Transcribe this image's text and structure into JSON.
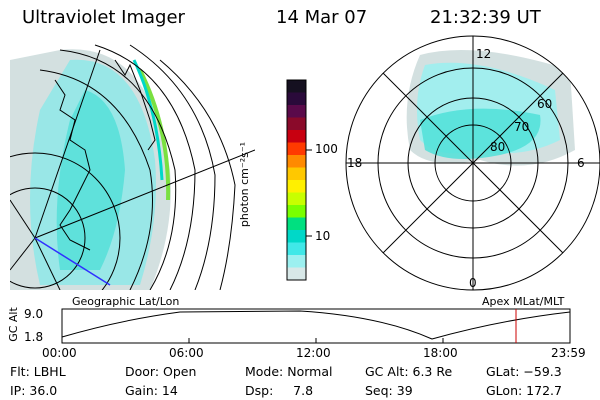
{
  "header": {
    "instrument": "Ultraviolet Imager",
    "date": "14 Mar 07",
    "time": "21:32:39 UT"
  },
  "colorbar": {
    "unit_label": "photon cm⁻²s⁻¹",
    "tick_labels": [
      "100",
      "10"
    ],
    "colors": [
      "#151020",
      "#2a0a3a",
      "#5a0a4a",
      "#8a0a2a",
      "#c80010",
      "#ff3a00",
      "#ff8a00",
      "#ffc800",
      "#fff000",
      "#c8ff00",
      "#7aff00",
      "#00e080",
      "#00d8c8",
      "#40e8e8",
      "#9cf0f0",
      "#d8e8e8"
    ]
  },
  "geographic_panel": {
    "label": "Geographic Lat/Lon"
  },
  "polar_panel": {
    "label": "Apex MLat/MLT",
    "mlt_labels": {
      "top": "12",
      "left": "18",
      "right": "6",
      "bottom": "0"
    },
    "lat_labels": [
      "60",
      "70",
      "80"
    ]
  },
  "altitude_plot": {
    "ylabel": "GC Alt",
    "y_ticks": [
      "9.0",
      "1.8"
    ],
    "x_ticks": [
      "00:00",
      "06:00",
      "12:00",
      "18:00",
      "23:59"
    ],
    "current_time_marker_color": "#cc0000"
  },
  "status": {
    "row1": {
      "filter": "Flt: LBHL",
      "door": "Door: Open",
      "mode": "Mode: Normal",
      "gc_alt": "GC Alt: 6.3 Re",
      "glat": "GLat: −59.3"
    },
    "row2": {
      "ip": "IP: 36.0",
      "gain": "Gain: 14",
      "dsp": "Dsp:     7.8",
      "seq": "Seq: 39",
      "glon": "GLon: 172.7"
    }
  }
}
